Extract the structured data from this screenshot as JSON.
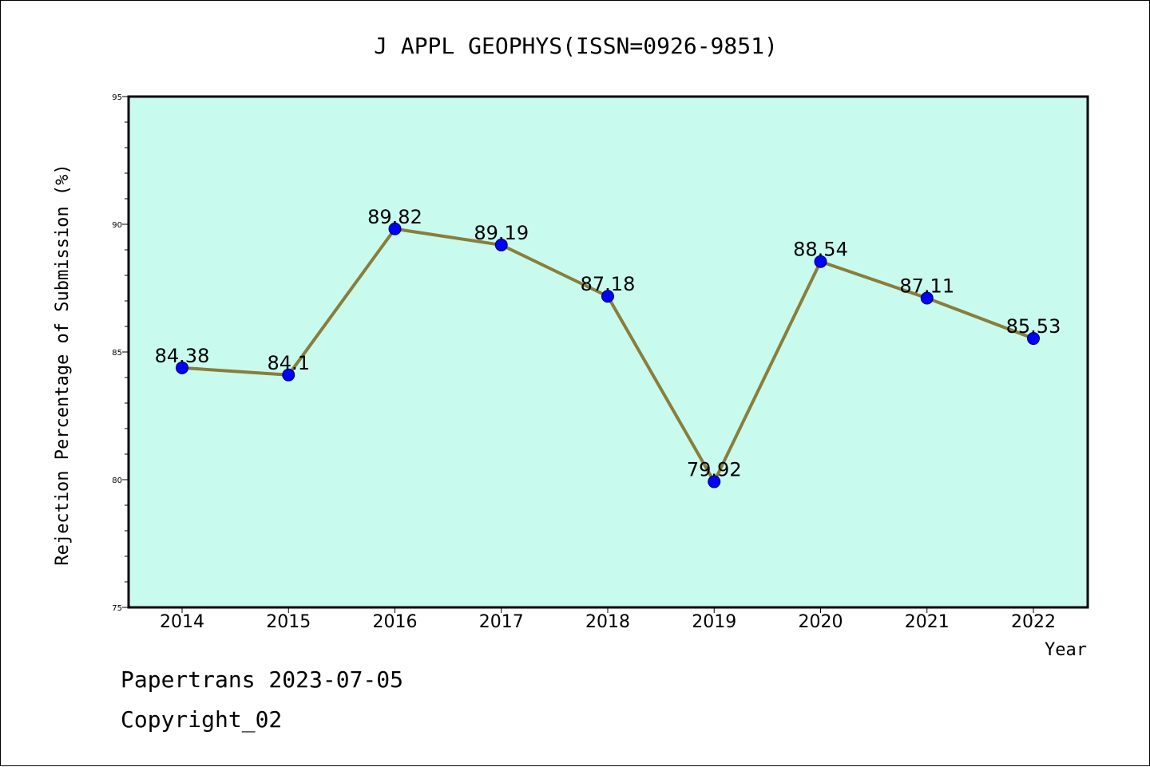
{
  "chart_data": {
    "type": "line",
    "title": "J APPL GEOPHYS(ISSN=0926-9851)",
    "xlabel": "Year",
    "ylabel": "Rejection Percentage of Submission (%)",
    "categories": [
      "2014",
      "2015",
      "2016",
      "2017",
      "2018",
      "2019",
      "2020",
      "2021",
      "2022"
    ],
    "series": [
      {
        "values": [
          84.38,
          84.1,
          89.82,
          89.19,
          87.18,
          79.92,
          88.54,
          87.11,
          85.53
        ]
      }
    ],
    "data_labels": [
      "84.38",
      "84.1",
      "89.82",
      "89.19",
      "87.18",
      "79.92",
      "88.54",
      "87.11",
      "85.53"
    ],
    "ylim": [
      75,
      95
    ],
    "yticks": [
      75,
      80,
      85,
      90,
      95
    ],
    "y_minor_step": 1,
    "grid": false,
    "legend": "none",
    "colors": {
      "plot_background": "#c8fbee",
      "line": "#8b7d3a",
      "marker": "#0000ff",
      "axes": "#000000"
    }
  },
  "footer": {
    "line1": "Papertrans 2023-07-05",
    "line2": "Copyright_02"
  }
}
